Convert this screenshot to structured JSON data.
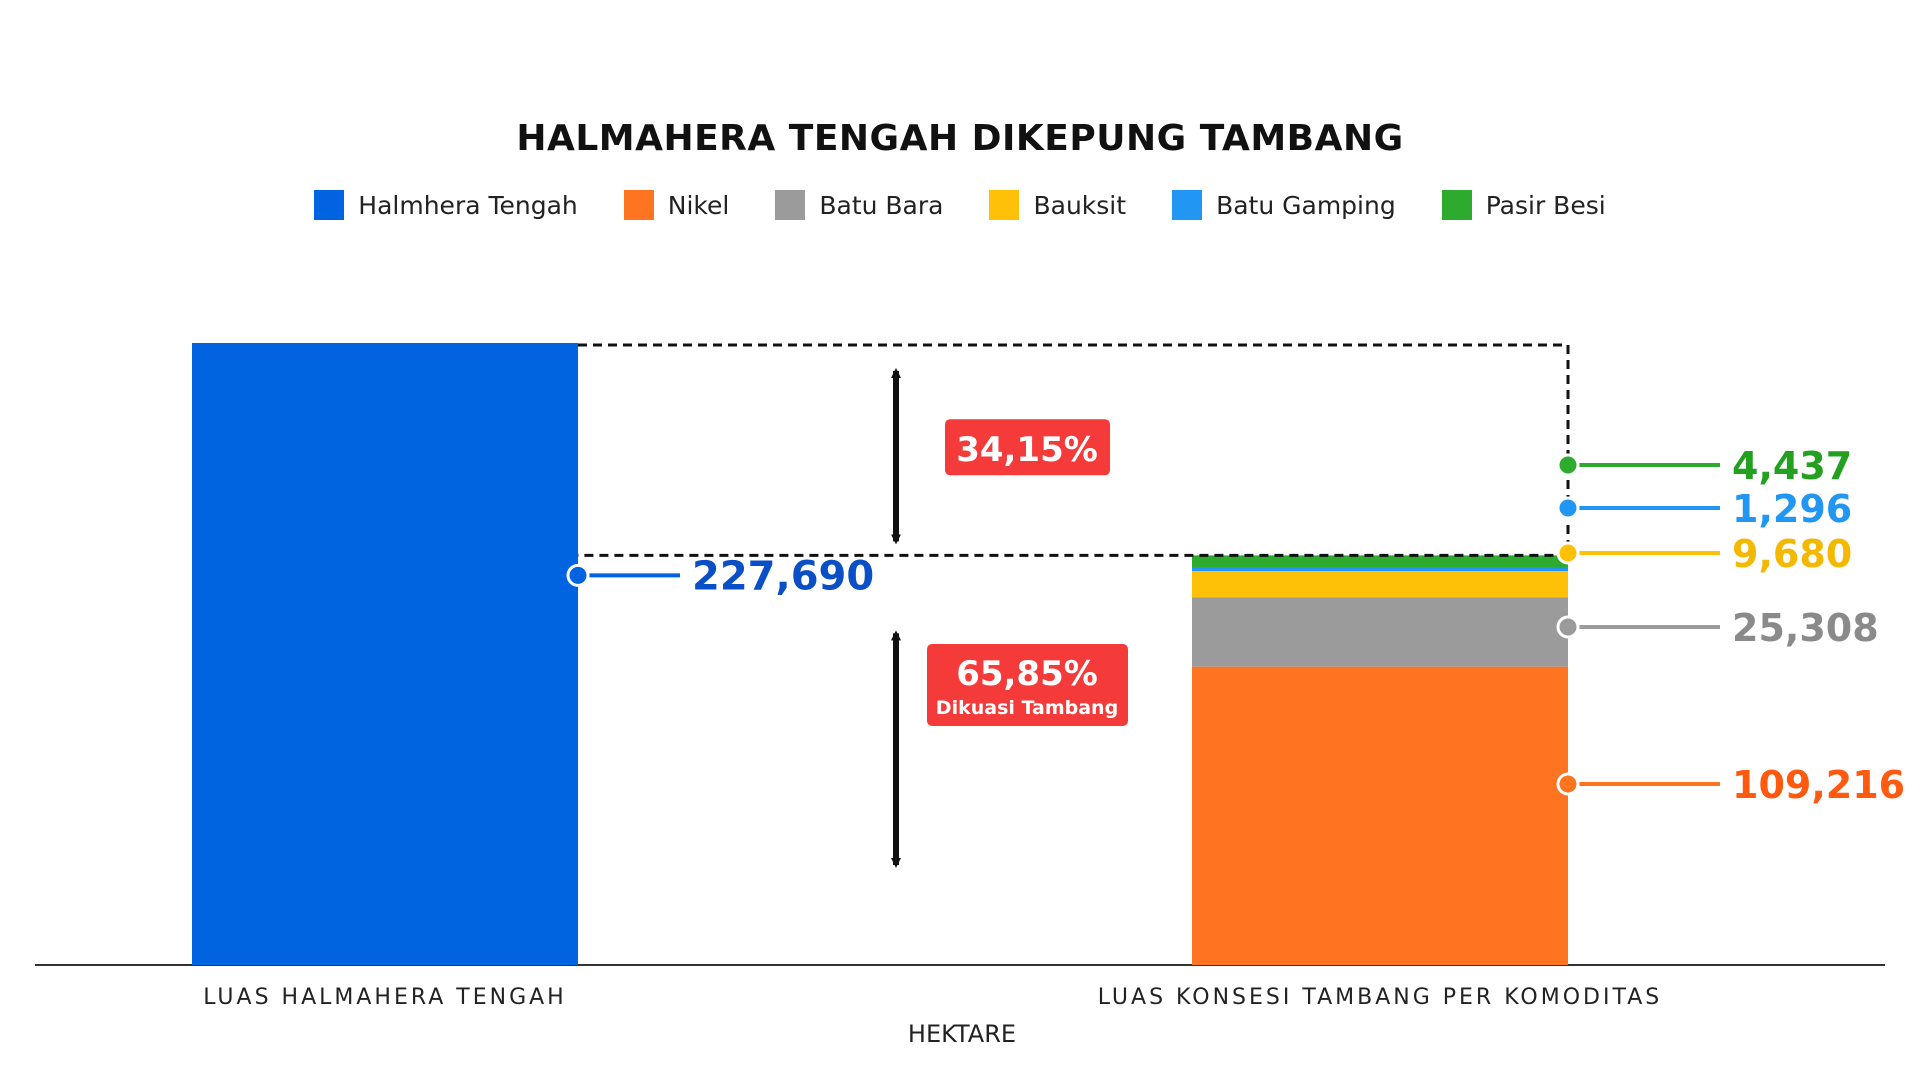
{
  "chart_data": {
    "type": "bar",
    "title": "HALMAHERA TENGAH DIKEPUNG TAMBANG",
    "xlabel": "HEKTARE",
    "ylabel": "",
    "categories": [
      "LUAS HALMAHERA TENGAH",
      "LUAS KONSESI TAMBANG PER KOMODITAS"
    ],
    "legend_position": "top",
    "grid": false,
    "ylim": [
      0,
      227690
    ],
    "series": [
      {
        "name": "Halmhera Tengah",
        "color": "#0063DF",
        "values": [
          227690,
          null
        ],
        "label": "227,690",
        "label_color": "#0B4FC6"
      },
      {
        "name": "Nikel",
        "color": "#FF7420",
        "values": [
          null,
          109216
        ],
        "label": "109,216",
        "label_color": "#FF5A10"
      },
      {
        "name": "Batu Bara",
        "color": "#9B9B9B",
        "values": [
          null,
          25308
        ],
        "label": "25,308",
        "label_color": "#8A8A8A"
      },
      {
        "name": "Bauksit",
        "color": "#FFC107",
        "values": [
          null,
          9680
        ],
        "label": "9,680",
        "label_color": "#F5B800"
      },
      {
        "name": "Batu Gamping",
        "color": "#2196F3",
        "values": [
          null,
          1296
        ],
        "label": "1,296",
        "label_color": "#2196F3"
      },
      {
        "name": "Pasir Besi",
        "color": "#2EAA2E",
        "values": [
          null,
          4437
        ],
        "label": "4,437",
        "label_color": "#23A020"
      }
    ],
    "annotations": [
      {
        "id": "top",
        "text": "34,15%",
        "subtext": "",
        "color": "#F53A3A"
      },
      {
        "id": "bottom",
        "text": "65,85%",
        "subtext": "Dikuasi Tambang",
        "color": "#F53A3A"
      }
    ]
  }
}
